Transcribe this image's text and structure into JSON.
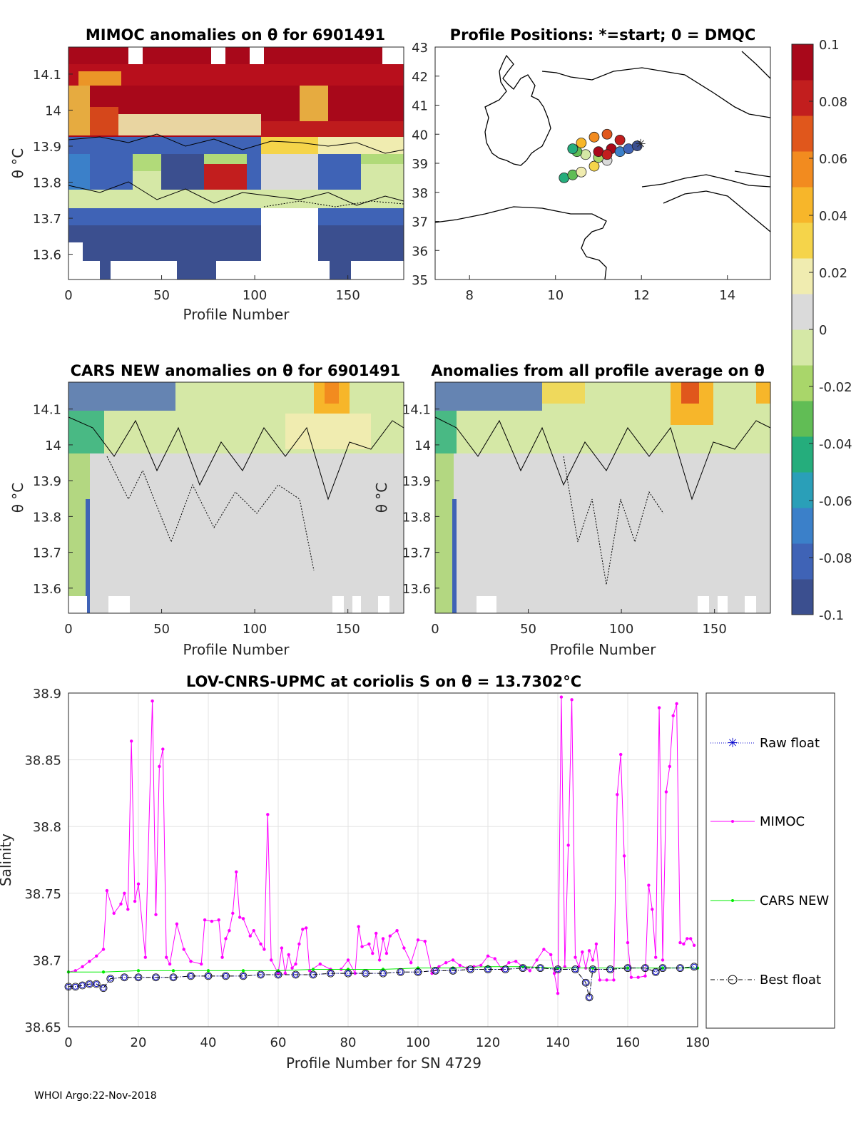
{
  "colors": {
    "mimoc": "#ff00ff",
    "cars": "#00ee00",
    "raw": "#0000cc",
    "best": "#000000",
    "colorbar": [
      "#3b4f8f",
      "#3f63b6",
      "#3b80c9",
      "#2a9fb8",
      "#25ad7c",
      "#61bd55",
      "#a9d66a",
      "#d5e8a6",
      "#dadada",
      "#f0ecb0",
      "#f5d44a",
      "#f7b62a",
      "#f28b1f",
      "#e0571c",
      "#c21e1e",
      "#a8081a"
    ]
  },
  "panels": {
    "mimoc": {
      "title": "MIMOC anomalies on θ  for 6901491",
      "ylabel": "θ °C",
      "xlabel": "Profile Number",
      "yticks": [
        "14.1",
        "14",
        "13.9",
        "13.8",
        "13.7",
        "13.6"
      ],
      "xticks": [
        "0",
        "50",
        "100",
        "150"
      ]
    },
    "map": {
      "title": "Profile Positions: *=start; 0 = DMQC",
      "yticks": [
        "43",
        "42",
        "41",
        "40",
        "39",
        "38",
        "37",
        "36",
        "35"
      ],
      "xticks": [
        "8",
        "10",
        "12",
        "14"
      ]
    },
    "cars": {
      "title": "CARS NEW anomalies on θ for 6901491",
      "ylabel": "θ °C",
      "xlabel": "Profile Number",
      "yticks": [
        "14.1",
        "14",
        "13.9",
        "13.8",
        "13.7",
        "13.6"
      ],
      "xticks": [
        "0",
        "50",
        "100",
        "150"
      ]
    },
    "allavg": {
      "title": "Anomalies from all profile average on θ",
      "ylabel": "θ °C",
      "xlabel": "Profile Number",
      "yticks": [
        "14.1",
        "14",
        "13.9",
        "13.8",
        "13.7",
        "13.6"
      ],
      "xticks": [
        "0",
        "50",
        "100",
        "150"
      ]
    },
    "colorbar": {
      "ticks": [
        "0.1",
        "0.08",
        "0.06",
        "0.04",
        "0.02",
        "0",
        "-0.02",
        "-0.04",
        "-0.06",
        "-0.08",
        "-0.1"
      ]
    }
  },
  "chart_data": {
    "type": "line",
    "title": "LOV-CNRS-UPMC at coriolis S on θ = 13.7302°C",
    "xlabel": "Profile Number for SN 4729",
    "ylabel": "Salinity",
    "xlim": [
      0,
      180
    ],
    "ylim": [
      38.65,
      38.9
    ],
    "xticks": [
      "0",
      "20",
      "40",
      "60",
      "80",
      "100",
      "120",
      "140",
      "160",
      "180"
    ],
    "yticks": [
      "38.9",
      "38.85",
      "38.8",
      "38.75",
      "38.7",
      "38.65"
    ],
    "legend": [
      "Raw float",
      "MIMOC",
      "CARS NEW",
      "Best float"
    ],
    "series": [
      {
        "name": "MIMOC",
        "points": [
          [
            0,
            38.691
          ],
          [
            2,
            38.692
          ],
          [
            4,
            38.695
          ],
          [
            6,
            38.699
          ],
          [
            8,
            38.703
          ],
          [
            10,
            38.708
          ],
          [
            11,
            38.752
          ],
          [
            13,
            38.735
          ],
          [
            15,
            38.742
          ],
          [
            16,
            38.75
          ],
          [
            17,
            38.738
          ],
          [
            18,
            38.864
          ],
          [
            19,
            38.744
          ],
          [
            20,
            38.757
          ],
          [
            22,
            38.702
          ],
          [
            24,
            38.894
          ],
          [
            25,
            38.734
          ],
          [
            26,
            38.845
          ],
          [
            27,
            38.858
          ],
          [
            28,
            38.702
          ],
          [
            29,
            38.697
          ],
          [
            31,
            38.727
          ],
          [
            33,
            38.708
          ],
          [
            35,
            38.699
          ],
          [
            38,
            38.697
          ],
          [
            39,
            38.73
          ],
          [
            41,
            38.729
          ],
          [
            43,
            38.73
          ],
          [
            44,
            38.702
          ],
          [
            45,
            38.716
          ],
          [
            46,
            38.722
          ],
          [
            47,
            38.735
          ],
          [
            48,
            38.766
          ],
          [
            49,
            38.732
          ],
          [
            50,
            38.731
          ],
          [
            52,
            38.718
          ],
          [
            53,
            38.722
          ],
          [
            55,
            38.712
          ],
          [
            56,
            38.708
          ],
          [
            57,
            38.809
          ],
          [
            58,
            38.7
          ],
          [
            60,
            38.69
          ],
          [
            61,
            38.709
          ],
          [
            62,
            38.69
          ],
          [
            63,
            38.704
          ],
          [
            64,
            38.694
          ],
          [
            65,
            38.697
          ],
          [
            66,
            38.712
          ],
          [
            67,
            38.723
          ],
          [
            68,
            38.724
          ],
          [
            69,
            38.692
          ],
          [
            72,
            38.697
          ],
          [
            75,
            38.693
          ],
          [
            78,
            38.693
          ],
          [
            80,
            38.7
          ],
          [
            82,
            38.69
          ],
          [
            83,
            38.725
          ],
          [
            84,
            38.71
          ],
          [
            86,
            38.712
          ],
          [
            87,
            38.705
          ],
          [
            88,
            38.72
          ],
          [
            89,
            38.7
          ],
          [
            90,
            38.716
          ],
          [
            91,
            38.705
          ],
          [
            92,
            38.718
          ],
          [
            94,
            38.722
          ],
          [
            96,
            38.709
          ],
          [
            98,
            38.698
          ],
          [
            100,
            38.715
          ],
          [
            102,
            38.714
          ],
          [
            104,
            38.69
          ],
          [
            106,
            38.695
          ],
          [
            108,
            38.698
          ],
          [
            110,
            38.7
          ],
          [
            112,
            38.696
          ],
          [
            114,
            38.694
          ],
          [
            116,
            38.695
          ],
          [
            118,
            38.696
          ],
          [
            120,
            38.703
          ],
          [
            122,
            38.701
          ],
          [
            124,
            38.693
          ],
          [
            126,
            38.698
          ],
          [
            128,
            38.699
          ],
          [
            130,
            38.695
          ],
          [
            132,
            38.692
          ],
          [
            134,
            38.7
          ],
          [
            136,
            38.708
          ],
          [
            138,
            38.704
          ],
          [
            139,
            38.69
          ],
          [
            140,
            38.675
          ],
          [
            141,
            38.897
          ],
          [
            142,
            38.695
          ],
          [
            143,
            38.786
          ],
          [
            144,
            38.895
          ],
          [
            145,
            38.702
          ],
          [
            146,
            38.695
          ],
          [
            147,
            38.706
          ],
          [
            148,
            38.694
          ],
          [
            149,
            38.707
          ],
          [
            150,
            38.7
          ],
          [
            151,
            38.712
          ],
          [
            152,
            38.685
          ],
          [
            154,
            38.685
          ],
          [
            156,
            38.685
          ],
          [
            157,
            38.824
          ],
          [
            158,
            38.854
          ],
          [
            159,
            38.778
          ],
          [
            160,
            38.713
          ],
          [
            161,
            38.687
          ],
          [
            163,
            38.687
          ],
          [
            165,
            38.688
          ],
          [
            166,
            38.756
          ],
          [
            167,
            38.738
          ],
          [
            168,
            38.702
          ],
          [
            169,
            38.889
          ],
          [
            170,
            38.7
          ],
          [
            171,
            38.826
          ],
          [
            172,
            38.845
          ],
          [
            173,
            38.883
          ],
          [
            174,
            38.892
          ],
          [
            175,
            38.713
          ],
          [
            176,
            38.712
          ],
          [
            177,
            38.716
          ],
          [
            178,
            38.716
          ],
          [
            179,
            38.711
          ]
        ]
      },
      {
        "name": "CARS NEW",
        "points": [
          [
            0,
            38.691
          ],
          [
            10,
            38.691
          ],
          [
            20,
            38.692
          ],
          [
            30,
            38.692
          ],
          [
            40,
            38.692
          ],
          [
            50,
            38.692
          ],
          [
            60,
            38.692
          ],
          [
            70,
            38.693
          ],
          [
            80,
            38.693
          ],
          [
            90,
            38.693
          ],
          [
            100,
            38.694
          ],
          [
            110,
            38.694
          ],
          [
            120,
            38.695
          ],
          [
            130,
            38.695
          ],
          [
            140,
            38.694
          ],
          [
            150,
            38.694
          ],
          [
            160,
            38.694
          ],
          [
            170,
            38.694
          ],
          [
            180,
            38.694
          ]
        ]
      },
      {
        "name": "Raw float",
        "points": [
          [
            0,
            38.68
          ],
          [
            2,
            38.68
          ],
          [
            4,
            38.681
          ],
          [
            6,
            38.682
          ],
          [
            8,
            38.682
          ],
          [
            10,
            38.679
          ],
          [
            12,
            38.686
          ],
          [
            16,
            38.687
          ],
          [
            20,
            38.687
          ],
          [
            25,
            38.687
          ],
          [
            30,
            38.687
          ],
          [
            35,
            38.688
          ],
          [
            40,
            38.688
          ],
          [
            45,
            38.688
          ],
          [
            50,
            38.688
          ],
          [
            55,
            38.689
          ],
          [
            60,
            38.689
          ],
          [
            65,
            38.689
          ],
          [
            70,
            38.689
          ],
          [
            75,
            38.69
          ],
          [
            80,
            38.69
          ],
          [
            85,
            38.69
          ],
          [
            90,
            38.69
          ],
          [
            95,
            38.691
          ],
          [
            100,
            38.691
          ],
          [
            105,
            38.692
          ],
          [
            110,
            38.692
          ],
          [
            115,
            38.693
          ],
          [
            120,
            38.693
          ],
          [
            125,
            38.693
          ],
          [
            130,
            38.694
          ],
          [
            135,
            38.694
          ],
          [
            140,
            38.693
          ],
          [
            145,
            38.693
          ],
          [
            148,
            38.683
          ],
          [
            149,
            38.672
          ],
          [
            150,
            38.693
          ],
          [
            155,
            38.693
          ],
          [
            160,
            38.694
          ],
          [
            165,
            38.694
          ],
          [
            168,
            38.691
          ],
          [
            170,
            38.694
          ],
          [
            175,
            38.694
          ],
          [
            179,
            38.695
          ]
        ]
      },
      {
        "name": "Best float",
        "points": [
          [
            0,
            38.68
          ],
          [
            2,
            38.68
          ],
          [
            4,
            38.681
          ],
          [
            6,
            38.682
          ],
          [
            8,
            38.682
          ],
          [
            10,
            38.679
          ],
          [
            12,
            38.686
          ],
          [
            16,
            38.687
          ],
          [
            20,
            38.687
          ],
          [
            25,
            38.687
          ],
          [
            30,
            38.687
          ],
          [
            35,
            38.688
          ],
          [
            40,
            38.688
          ],
          [
            45,
            38.688
          ],
          [
            50,
            38.688
          ],
          [
            55,
            38.689
          ],
          [
            60,
            38.689
          ],
          [
            65,
            38.689
          ],
          [
            70,
            38.689
          ],
          [
            75,
            38.69
          ],
          [
            80,
            38.69
          ],
          [
            85,
            38.69
          ],
          [
            90,
            38.69
          ],
          [
            95,
            38.691
          ],
          [
            100,
            38.691
          ],
          [
            105,
            38.692
          ],
          [
            110,
            38.692
          ],
          [
            115,
            38.693
          ],
          [
            120,
            38.693
          ],
          [
            125,
            38.693
          ],
          [
            130,
            38.694
          ],
          [
            135,
            38.694
          ],
          [
            140,
            38.693
          ],
          [
            145,
            38.693
          ],
          [
            148,
            38.683
          ],
          [
            149,
            38.672
          ],
          [
            150,
            38.693
          ],
          [
            155,
            38.693
          ],
          [
            160,
            38.694
          ],
          [
            165,
            38.694
          ],
          [
            168,
            38.691
          ],
          [
            170,
            38.694
          ],
          [
            175,
            38.694
          ],
          [
            179,
            38.695
          ]
        ]
      }
    ]
  },
  "footer": "WHOI Argo:22-Nov-2018"
}
